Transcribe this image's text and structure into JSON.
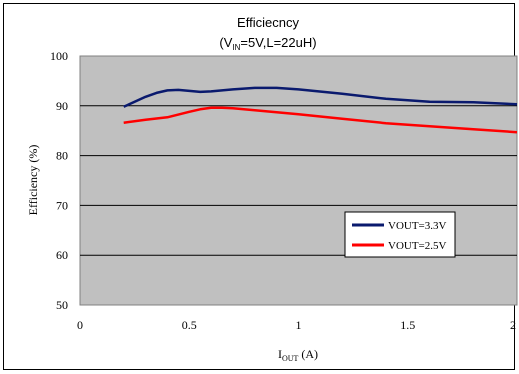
{
  "chart_data": {
    "type": "line",
    "title": "Efficiecncy",
    "subtitle_parts": [
      "(V",
      "IN",
      "=5V,L=22uH)"
    ],
    "xlabel_parts": [
      "I",
      "OUT",
      " (A)"
    ],
    "ylabel": "Efficiency (%)",
    "xlim": [
      0,
      2
    ],
    "ylim": [
      50,
      100
    ],
    "xticks": [
      0,
      0.5,
      1,
      1.5,
      2
    ],
    "xtick_labels": [
      "0",
      "0.5",
      "1",
      "1.5",
      "2"
    ],
    "yticks": [
      50,
      60,
      70,
      80,
      90,
      100
    ],
    "ytick_labels": [
      "50",
      "60",
      "70",
      "80",
      "90",
      "100"
    ],
    "grid": true,
    "plot_background": "#c0c0c0",
    "legend_position": "bottom-right",
    "series": [
      {
        "name": "VOUT=3.3V",
        "color": "#0a1a6e",
        "x": [
          0.2,
          0.3,
          0.35,
          0.4,
          0.45,
          0.5,
          0.55,
          0.6,
          0.7,
          0.8,
          0.9,
          1.0,
          1.2,
          1.4,
          1.6,
          1.8,
          2.0
        ],
        "y": [
          89.8,
          91.8,
          92.6,
          93.1,
          93.2,
          93.0,
          92.8,
          92.9,
          93.3,
          93.6,
          93.6,
          93.3,
          92.4,
          91.4,
          90.8,
          90.7,
          90.3
        ]
      },
      {
        "name": "VOUT=2.5V",
        "color": "#ff0000",
        "x": [
          0.2,
          0.3,
          0.4,
          0.5,
          0.55,
          0.6,
          0.65,
          0.7,
          0.8,
          0.9,
          1.0,
          1.2,
          1.4,
          1.6,
          1.8,
          2.0
        ],
        "y": [
          86.6,
          87.2,
          87.7,
          88.8,
          89.3,
          89.6,
          89.6,
          89.5,
          89.1,
          88.7,
          88.3,
          87.4,
          86.5,
          85.9,
          85.3,
          84.7
        ]
      }
    ]
  }
}
